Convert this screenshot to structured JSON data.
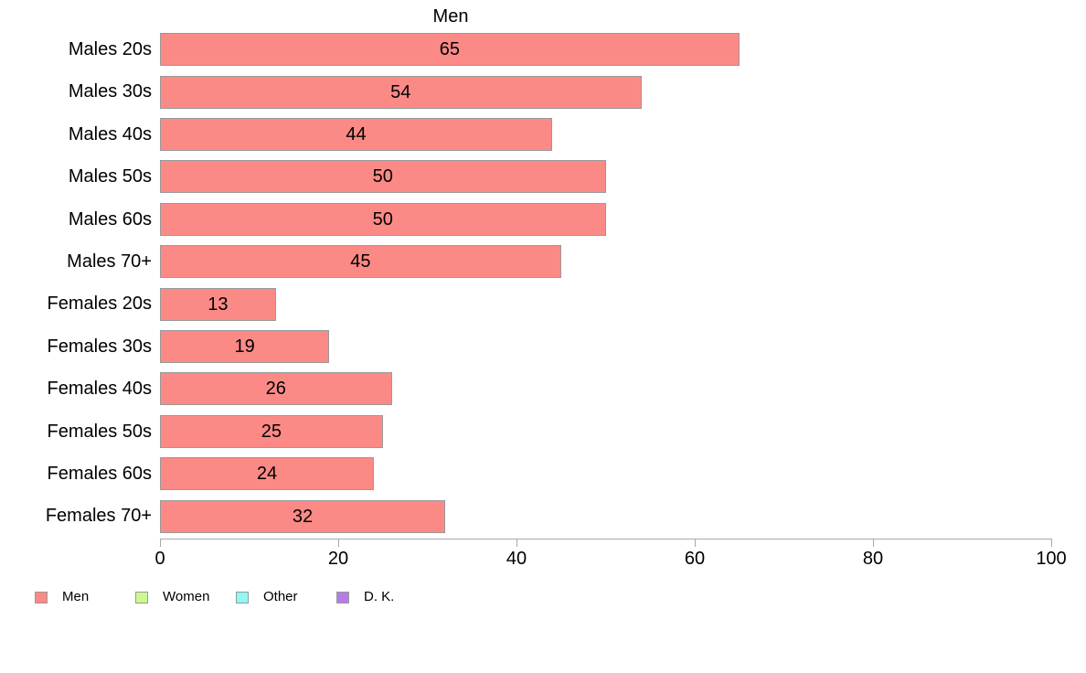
{
  "chart_data": {
    "type": "bar",
    "orientation": "horizontal",
    "title": "Men",
    "categories": [
      "Males 20s",
      "Males 30s",
      "Males 40s",
      "Males 50s",
      "Males 60s",
      "Males 70+",
      "Females 20s",
      "Females 30s",
      "Females 40s",
      "Females 50s",
      "Females 60s",
      "Females 70+"
    ],
    "values": [
      65,
      54,
      44,
      50,
      50,
      45,
      13,
      19,
      26,
      25,
      24,
      32
    ],
    "value_labels_inside_bars": true,
    "xlabel": "",
    "ylabel": "",
    "xlim": [
      0,
      100
    ],
    "xticks": [
      0,
      20,
      40,
      60,
      80,
      100
    ],
    "xtick_labels": [
      "0",
      "20",
      "40",
      "60",
      "80",
      "100"
    ],
    "grid": false,
    "colors": {
      "bar_fill": "#fb8a86",
      "bar_border": "#9a9a9a",
      "axis": "#a8a8a8",
      "text": "#000000",
      "background": "#ffffff"
    },
    "legend": {
      "position": "bottom-left",
      "entries": [
        {
          "label": "Men",
          "color": "#fb8a86"
        },
        {
          "label": "Women",
          "color": "#cdf98f"
        },
        {
          "label": "Other",
          "color": "#8ff9f6"
        },
        {
          "label": "D. K.",
          "color": "#b67be8"
        }
      ]
    }
  }
}
